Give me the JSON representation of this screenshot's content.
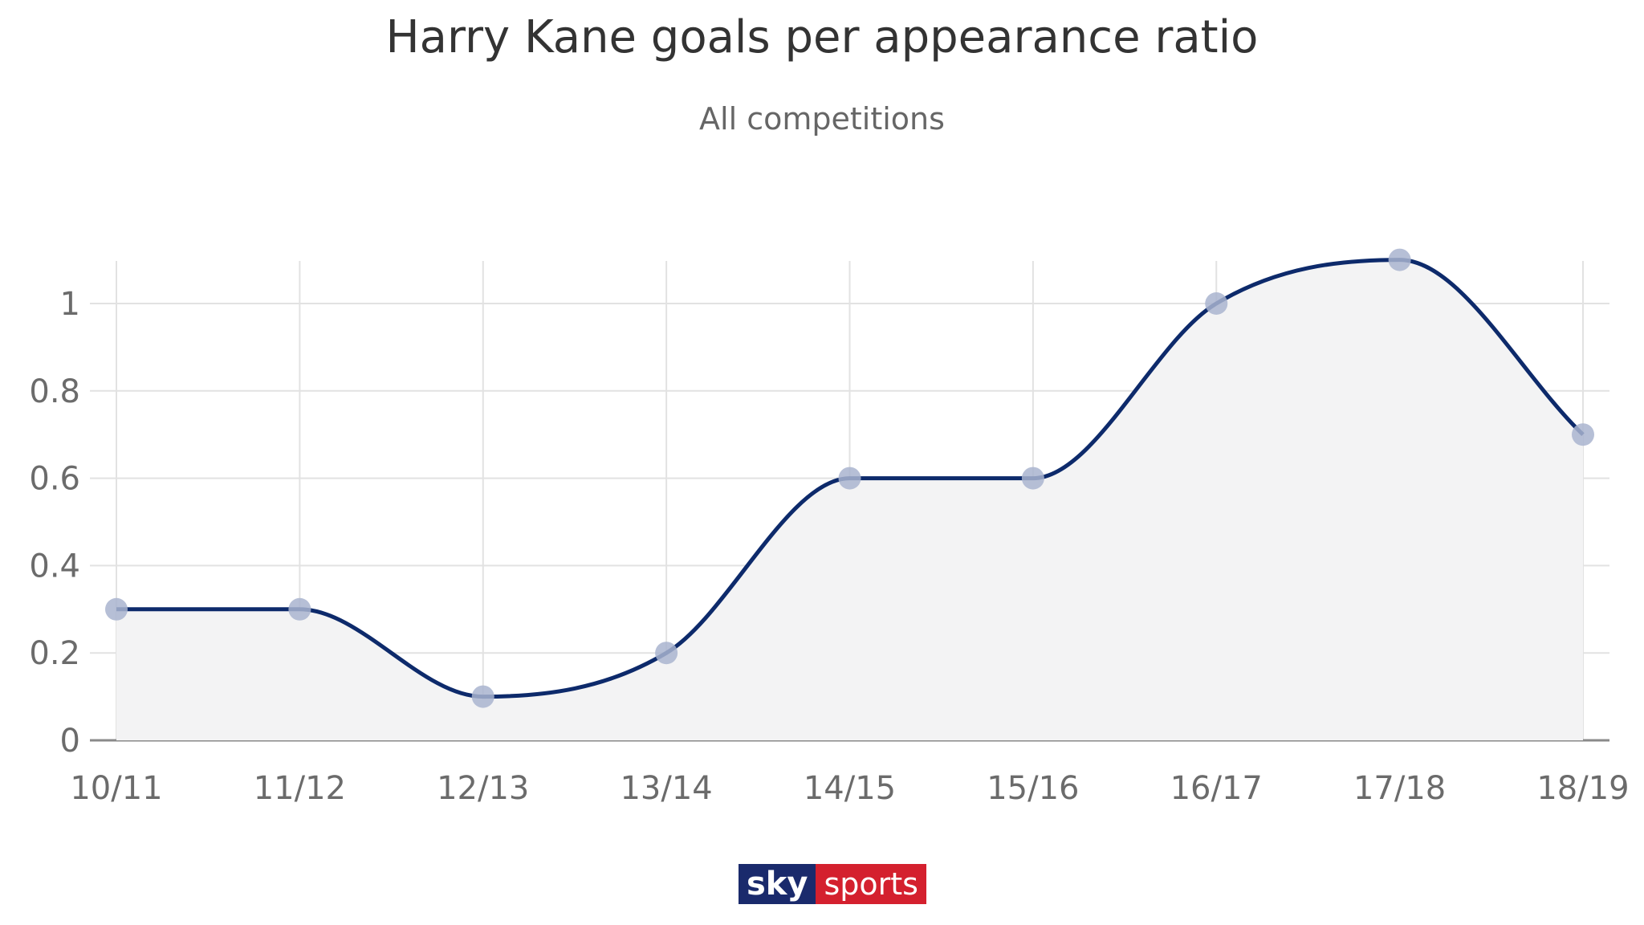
{
  "chart_data": {
    "type": "line",
    "title": "Harry Kane goals per appearance ratio",
    "subtitle": "All competitions",
    "categories": [
      "10/11",
      "11/12",
      "12/13",
      "13/14",
      "14/15",
      "15/16",
      "16/17",
      "17/18",
      "18/19"
    ],
    "series": [
      {
        "values": [
          0.3,
          0.3,
          0.1,
          0.2,
          0.6,
          0.6,
          1.0,
          1.1,
          0.7
        ]
      }
    ],
    "yticks": [
      "0",
      "0.2",
      "0.4",
      "0.6",
      "0.8",
      "1"
    ],
    "ylim": [
      0,
      1.1
    ],
    "grid": true,
    "xlabel": "",
    "ylabel": ""
  },
  "colors": {
    "line": "#0d2a6b",
    "marker": "#a9b4cf",
    "area": "#f3f3f4",
    "grid": "#e2e2e2",
    "axis": "#8a8a8a"
  },
  "logo": {
    "sky": "sky",
    "sports": "sports"
  }
}
